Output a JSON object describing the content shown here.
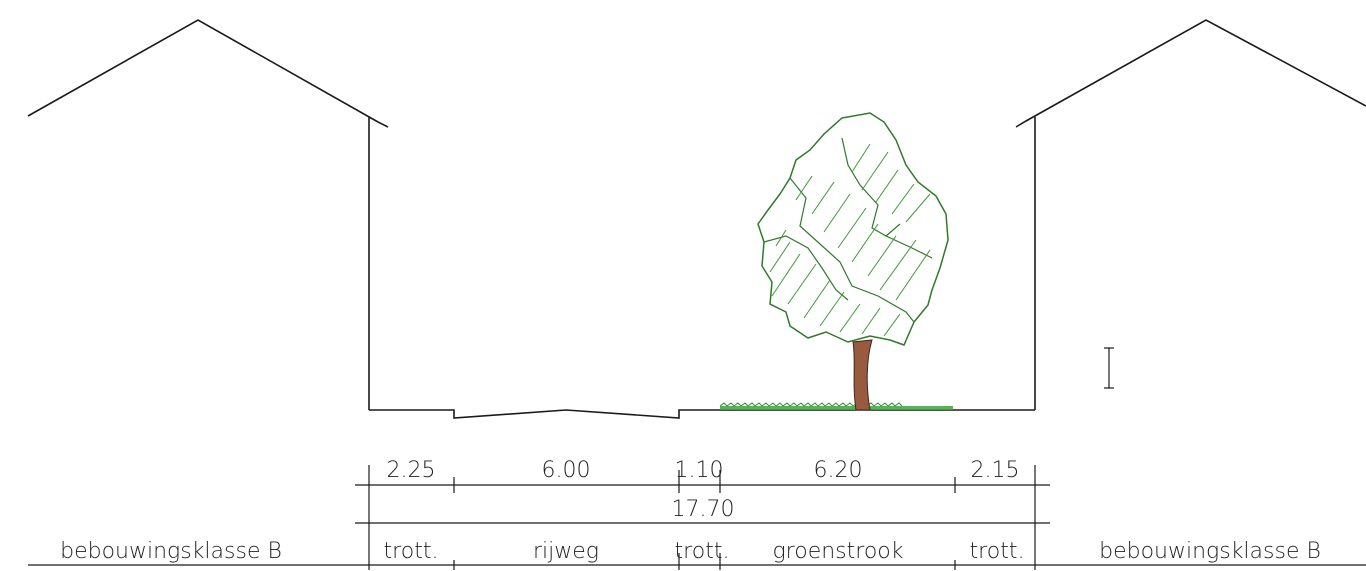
{
  "dimensions": {
    "segments": [
      "2.25",
      "6.00",
      "1.10",
      "6.20",
      "2.15"
    ],
    "total": "17.70"
  },
  "labels": {
    "left_building": "bebouwingsklasse B",
    "right_building": "bebouwingsklasse B",
    "zones": [
      "trott.",
      "rijweg",
      "trott.",
      "groenstrook",
      "trott."
    ]
  },
  "colors": {
    "line": "#1a1a1a",
    "tree_outline": "#2f7a2a",
    "tree_hatch": "#3c9a34",
    "trunk": "#9a5a3f",
    "grass": "#3aa63a"
  },
  "icons": {
    "tree": "tree-icon",
    "cursor": "text-cursor-icon"
  }
}
